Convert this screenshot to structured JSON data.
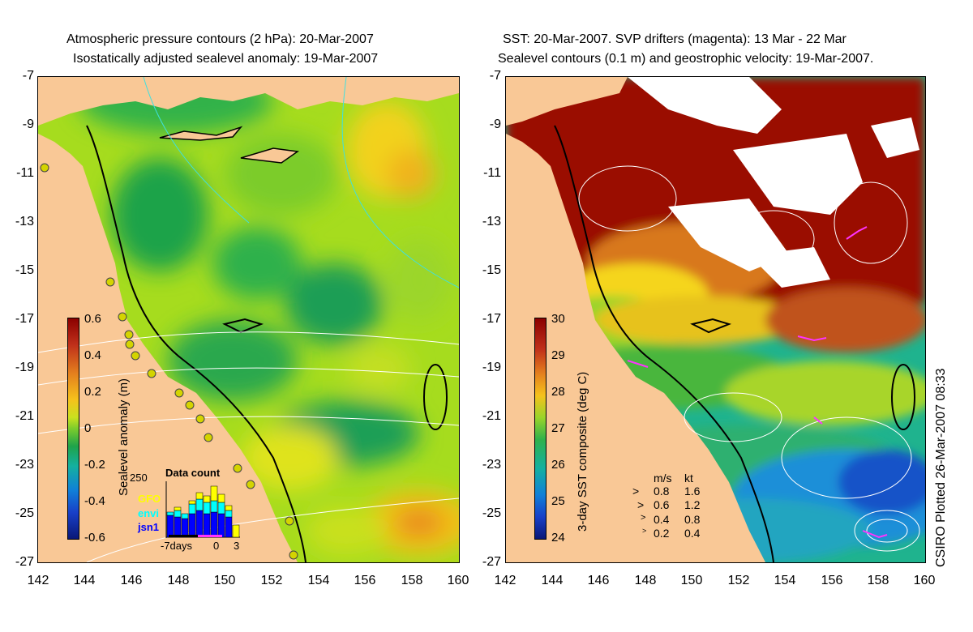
{
  "left_panel": {
    "title_line1": "Atmospheric pressure contours (2 hPa): 20-Mar-2007",
    "title_line2": "Isostatically adjusted sealevel anomaly: 19-Mar-2007",
    "colorbar_label": "Sealevel anomaly (m)",
    "colorbar_ticks": [
      "0.6",
      "0.4",
      "0.2",
      "0",
      "-0.2",
      "-0.4",
      "-0.6"
    ],
    "inset": {
      "title": "Data count",
      "ymax": "250",
      "satellites": [
        {
          "name": "GFO",
          "color": "#ffff00"
        },
        {
          "name": "envi",
          "color": "#00ffff"
        },
        {
          "name": "jsn1",
          "color": "#0000ff"
        }
      ],
      "x_ticks": [
        "-7days",
        "0",
        "3"
      ]
    }
  },
  "right_panel": {
    "title_line1": "SST: 20-Mar-2007. SVP drifters (magenta): 13 Mar - 22 Mar",
    "title_line2": "Sealevel contours (0.1 m) and geostrophic velocity: 19-Mar-2007.",
    "colorbar_label": "3-day SST composite (deg C)",
    "colorbar_ticks": [
      "30",
      "29",
      "28",
      "27",
      "26",
      "25",
      "24"
    ],
    "velocity_legend": {
      "header_ms": "m/s",
      "header_kt": "kt",
      "rows": [
        {
          "ms": "0.8",
          "kt": "1.6"
        },
        {
          "ms": "0.6",
          "kt": "1.2"
        },
        {
          "ms": "0.4",
          "kt": "0.8"
        },
        {
          "ms": "0.2",
          "kt": "0.4"
        }
      ]
    }
  },
  "y_ticks": [
    "-7",
    "-9",
    "-11",
    "-13",
    "-15",
    "-17",
    "-19",
    "-21",
    "-23",
    "-25",
    "-27"
  ],
  "x_ticks": [
    "142",
    "144",
    "146",
    "148",
    "150",
    "152",
    "154",
    "156",
    "158",
    "160"
  ],
  "credit": "CSIRO Plotted 26-Mar-2007 08:33",
  "colors": {
    "land": "#f9c896",
    "sla_neutral": "#a6dc1e",
    "sst_hot": "#9a0e00",
    "coast": "#000000"
  }
}
